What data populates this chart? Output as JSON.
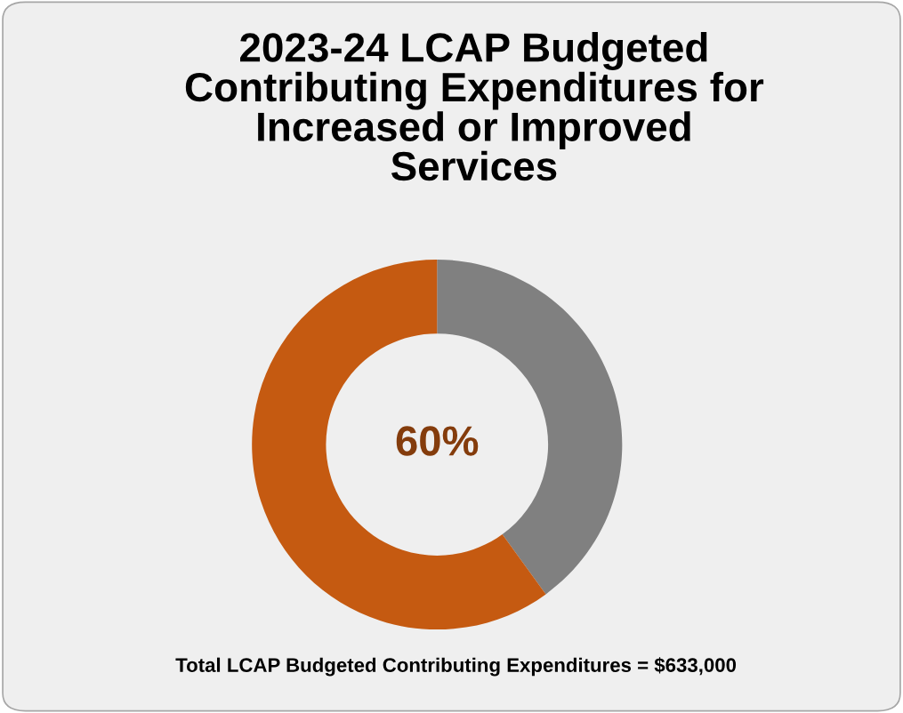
{
  "chart_data": {
    "type": "donut",
    "title": "2023-24 LCAP Budgeted\nContributing Expenditures for\nIncreased or Improved\nServices",
    "categories": [
      null,
      null
    ],
    "values": [
      40,
      60
    ],
    "colors": [
      "#808080",
      "#c55a11"
    ],
    "value_labels": [
      null,
      "60%"
    ],
    "annotations": [
      "Total LCAP Budgeted Contributing Expenditures = $633,000"
    ]
  }
}
